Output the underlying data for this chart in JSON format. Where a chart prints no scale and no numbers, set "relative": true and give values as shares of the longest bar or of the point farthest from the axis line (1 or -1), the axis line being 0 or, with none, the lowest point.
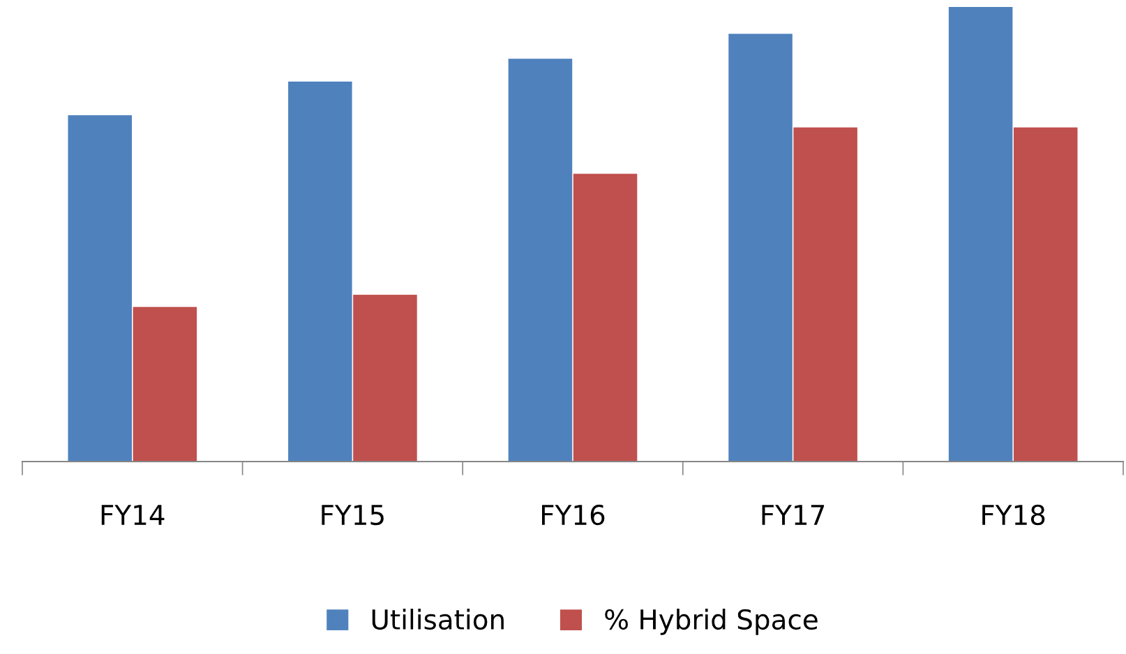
{
  "chart_data": {
    "type": "bar",
    "relative": true,
    "categories": [
      "FY14",
      "FY15",
      "FY16",
      "FY17",
      "FY18"
    ],
    "series": [
      {
        "name": "Utilisation",
        "color": "#4f81bd",
        "values": [
          0.762,
          0.836,
          0.886,
          0.941,
          1
        ]
      },
      {
        "name": "% Hybrid Space",
        "color": "#c0504d",
        "values": [
          0.34,
          0.367,
          0.633,
          0.735,
          0.735
        ]
      }
    ],
    "legend": "bottom",
    "grid": false
  }
}
